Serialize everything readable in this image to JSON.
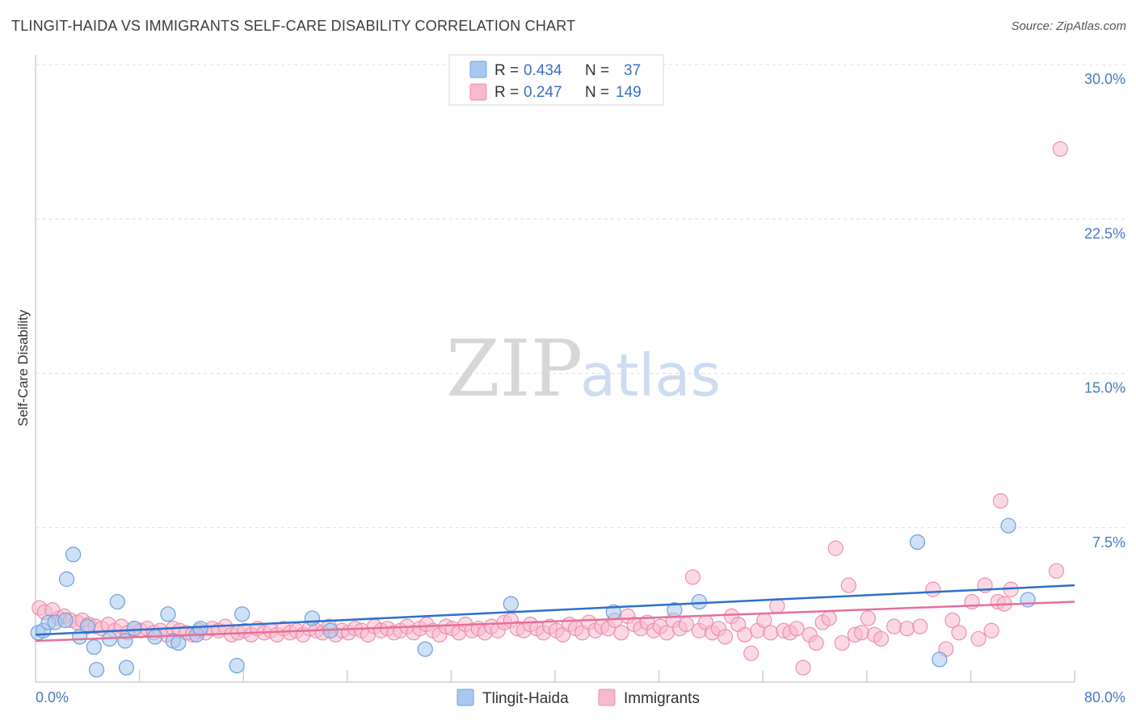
{
  "header": {
    "title": "TLINGIT-HAIDA VS IMMIGRANTS SELF-CARE DISABILITY CORRELATION CHART",
    "source": "Source: ZipAtlas.com"
  },
  "watermark": {
    "zip": "ZIP",
    "atlas": "atlas"
  },
  "legend": {
    "rows": [
      {
        "r_label": "R =",
        "r_value": "0.434",
        "n_label": "N =",
        "n_value": "37",
        "color": "#a8c8f0"
      },
      {
        "r_label": "R =",
        "r_value": "0.247",
        "n_label": "N =",
        "n_value": "149",
        "color": "#f7b9cc"
      }
    ]
  },
  "chart_data": {
    "type": "scatter",
    "title": "TLINGIT-HAIDA VS IMMIGRANTS SELF-CARE DISABILITY CORRELATION CHART",
    "xlabel": "",
    "ylabel": "Self-Care Disability",
    "xlim": [
      0,
      80
    ],
    "ylim": [
      0,
      30
    ],
    "x_tick_labels": [
      {
        "value": 0,
        "label": "0.0%"
      },
      {
        "value": 80,
        "label": "80.0%"
      }
    ],
    "y_tick_labels": [
      {
        "value": 7.5,
        "label": "7.5%"
      },
      {
        "value": 15,
        "label": "15.0%"
      },
      {
        "value": 22.5,
        "label": "22.5%"
      },
      {
        "value": 30,
        "label": "30.0%"
      }
    ],
    "x_minor_ticks": [
      8,
      16,
      24,
      32,
      40,
      48,
      56,
      64,
      72,
      80
    ],
    "grid": true,
    "series": [
      {
        "name": "Tlingit-Haida",
        "color": "#a8c8f0",
        "stroke": "#6e9fdc",
        "trend_color": "#2d6fcc",
        "trend": [
          [
            0,
            2.3
          ],
          [
            80,
            4.7
          ]
        ],
        "points": [
          [
            0.2,
            2.4
          ],
          [
            0.6,
            2.5
          ],
          [
            1.0,
            2.9
          ],
          [
            1.5,
            2.9
          ],
          [
            2.3,
            3.0
          ],
          [
            2.4,
            5.0
          ],
          [
            2.9,
            6.2
          ],
          [
            3.4,
            2.2
          ],
          [
            4.0,
            2.7
          ],
          [
            4.5,
            1.7
          ],
          [
            4.7,
            0.6
          ],
          [
            5.7,
            2.1
          ],
          [
            6.3,
            3.9
          ],
          [
            6.9,
            2.0
          ],
          [
            7.0,
            0.7
          ],
          [
            7.6,
            2.6
          ],
          [
            9.2,
            2.2
          ],
          [
            10.2,
            3.3
          ],
          [
            10.6,
            2.0
          ],
          [
            11.0,
            1.9
          ],
          [
            12.4,
            2.3
          ],
          [
            12.7,
            2.6
          ],
          [
            15.5,
            0.8
          ],
          [
            15.9,
            3.3
          ],
          [
            21.3,
            3.1
          ],
          [
            22.7,
            2.5
          ],
          [
            30.0,
            1.6
          ],
          [
            36.6,
            3.8
          ],
          [
            44.5,
            3.4
          ],
          [
            49.2,
            3.5
          ],
          [
            51.1,
            3.9
          ],
          [
            67.9,
            6.8
          ],
          [
            69.6,
            1.1
          ],
          [
            74.9,
            7.6
          ],
          [
            76.4,
            4.0
          ]
        ]
      },
      {
        "name": "Immigrants",
        "color": "#f7b9cc",
        "stroke": "#ee8fae",
        "trend_color": "#e76f98",
        "trend": [
          [
            0,
            2.0
          ],
          [
            80,
            3.9
          ]
        ],
        "points": [
          [
            0.3,
            3.6
          ],
          [
            0.7,
            3.4
          ],
          [
            1.3,
            3.5
          ],
          [
            1.8,
            3.1
          ],
          [
            2.2,
            3.2
          ],
          [
            2.7,
            3.0
          ],
          [
            3.2,
            2.9
          ],
          [
            3.6,
            3.0
          ],
          [
            4.1,
            2.8
          ],
          [
            4.6,
            2.7
          ],
          [
            5.1,
            2.6
          ],
          [
            5.6,
            2.8
          ],
          [
            6.1,
            2.5
          ],
          [
            6.6,
            2.7
          ],
          [
            7.1,
            2.4
          ],
          [
            7.6,
            2.6
          ],
          [
            8.1,
            2.5
          ],
          [
            8.6,
            2.6
          ],
          [
            9.1,
            2.4
          ],
          [
            9.6,
            2.5
          ],
          [
            10.1,
            2.3
          ],
          [
            10.6,
            2.6
          ],
          [
            11.1,
            2.5
          ],
          [
            11.6,
            2.4
          ],
          [
            12.1,
            2.3
          ],
          [
            12.6,
            2.5
          ],
          [
            13.1,
            2.4
          ],
          [
            13.6,
            2.6
          ],
          [
            14.1,
            2.5
          ],
          [
            14.6,
            2.7
          ],
          [
            15.1,
            2.3
          ],
          [
            15.6,
            2.4
          ],
          [
            16.1,
            2.5
          ],
          [
            16.6,
            2.3
          ],
          [
            17.1,
            2.6
          ],
          [
            17.6,
            2.4
          ],
          [
            18.1,
            2.5
          ],
          [
            18.6,
            2.3
          ],
          [
            19.1,
            2.6
          ],
          [
            19.6,
            2.4
          ],
          [
            20.1,
            2.5
          ],
          [
            20.6,
            2.3
          ],
          [
            21.1,
            2.6
          ],
          [
            21.6,
            2.5
          ],
          [
            22.1,
            2.4
          ],
          [
            22.6,
            2.7
          ],
          [
            23.1,
            2.3
          ],
          [
            23.6,
            2.5
          ],
          [
            24.1,
            2.4
          ],
          [
            24.6,
            2.6
          ],
          [
            25.1,
            2.5
          ],
          [
            25.6,
            2.3
          ],
          [
            26.1,
            2.7
          ],
          [
            26.6,
            2.5
          ],
          [
            27.1,
            2.6
          ],
          [
            27.6,
            2.4
          ],
          [
            28.1,
            2.5
          ],
          [
            28.6,
            2.7
          ],
          [
            29.1,
            2.4
          ],
          [
            29.6,
            2.6
          ],
          [
            30.1,
            2.8
          ],
          [
            30.6,
            2.5
          ],
          [
            31.1,
            2.3
          ],
          [
            31.6,
            2.7
          ],
          [
            32.1,
            2.6
          ],
          [
            32.6,
            2.4
          ],
          [
            33.1,
            2.8
          ],
          [
            33.6,
            2.5
          ],
          [
            34.1,
            2.6
          ],
          [
            34.6,
            2.4
          ],
          [
            35.1,
            2.7
          ],
          [
            35.6,
            2.5
          ],
          [
            36.1,
            2.9
          ],
          [
            36.6,
            3.0
          ],
          [
            37.1,
            2.6
          ],
          [
            37.6,
            2.5
          ],
          [
            38.1,
            2.8
          ],
          [
            38.6,
            2.6
          ],
          [
            39.1,
            2.4
          ],
          [
            39.6,
            2.7
          ],
          [
            40.1,
            2.5
          ],
          [
            40.6,
            2.3
          ],
          [
            41.1,
            2.8
          ],
          [
            41.6,
            2.6
          ],
          [
            42.1,
            2.4
          ],
          [
            42.6,
            2.9
          ],
          [
            43.1,
            2.5
          ],
          [
            43.6,
            2.7
          ],
          [
            44.1,
            2.6
          ],
          [
            44.6,
            3.0
          ],
          [
            45.1,
            2.4
          ],
          [
            45.6,
            3.2
          ],
          [
            46.1,
            2.8
          ],
          [
            46.6,
            2.6
          ],
          [
            47.1,
            2.9
          ],
          [
            47.6,
            2.5
          ],
          [
            48.1,
            2.7
          ],
          [
            48.6,
            2.4
          ],
          [
            49.1,
            3.0
          ],
          [
            49.6,
            2.6
          ],
          [
            50.1,
            2.8
          ],
          [
            50.6,
            5.1
          ],
          [
            51.1,
            2.5
          ],
          [
            51.6,
            2.9
          ],
          [
            52.1,
            2.4
          ],
          [
            52.6,
            2.6
          ],
          [
            53.1,
            2.2
          ],
          [
            53.6,
            3.2
          ],
          [
            54.1,
            2.8
          ],
          [
            54.6,
            2.3
          ],
          [
            55.1,
            1.4
          ],
          [
            55.6,
            2.5
          ],
          [
            56.1,
            3.0
          ],
          [
            56.6,
            2.4
          ],
          [
            57.1,
            3.7
          ],
          [
            57.6,
            2.5
          ],
          [
            58.1,
            2.4
          ],
          [
            58.6,
            2.6
          ],
          [
            59.1,
            0.7
          ],
          [
            59.6,
            2.3
          ],
          [
            60.1,
            1.9
          ],
          [
            60.6,
            2.9
          ],
          [
            61.1,
            3.1
          ],
          [
            61.6,
            6.5
          ],
          [
            62.1,
            1.9
          ],
          [
            62.6,
            4.7
          ],
          [
            63.1,
            2.3
          ],
          [
            63.6,
            2.4
          ],
          [
            64.1,
            3.1
          ],
          [
            64.6,
            2.3
          ],
          [
            65.1,
            2.1
          ],
          [
            66.1,
            2.7
          ],
          [
            67.1,
            2.6
          ],
          [
            68.1,
            2.7
          ],
          [
            69.1,
            4.5
          ],
          [
            70.1,
            1.6
          ],
          [
            70.6,
            3.0
          ],
          [
            71.1,
            2.4
          ],
          [
            72.1,
            3.9
          ],
          [
            72.6,
            2.1
          ],
          [
            73.1,
            4.7
          ],
          [
            73.6,
            2.5
          ],
          [
            74.1,
            3.9
          ],
          [
            74.6,
            3.8
          ],
          [
            75.1,
            4.5
          ],
          [
            74.3,
            8.8
          ],
          [
            78.6,
            5.4
          ],
          [
            78.9,
            25.9
          ]
        ]
      }
    ]
  }
}
